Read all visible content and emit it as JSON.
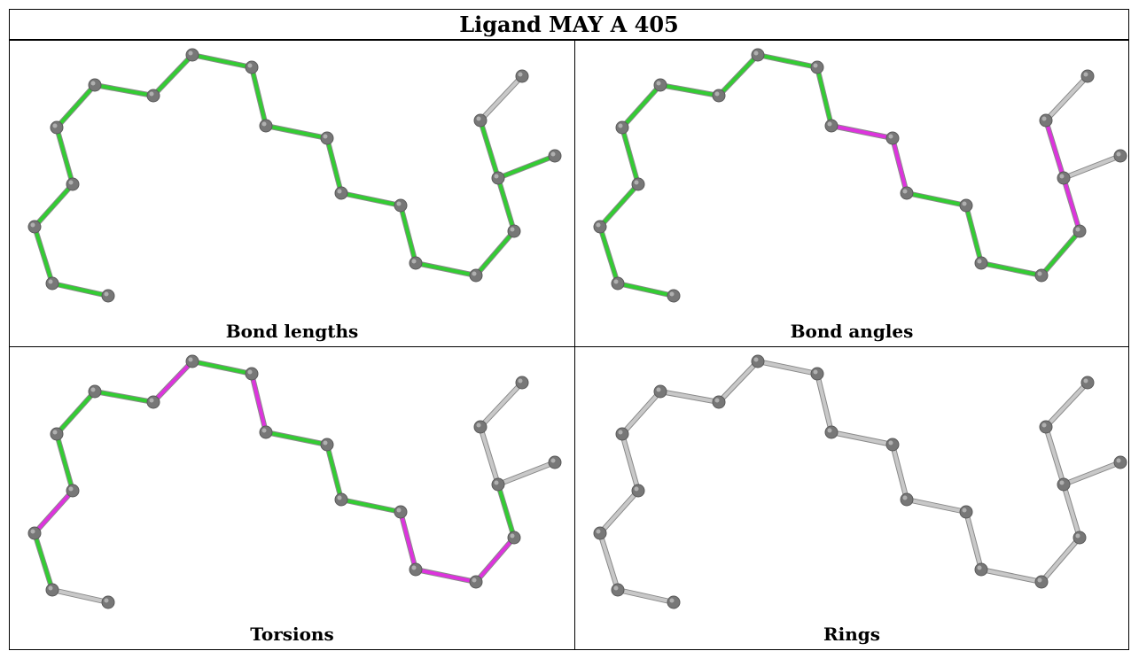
{
  "title": "Ligand MAY A 405",
  "colors": {
    "ok": "#33cc33",
    "outlier": "#dd33dd",
    "neutral": "#c8c8c8",
    "atom": "#777777"
  },
  "panels": [
    {
      "caption": "Bond lengths",
      "bond_colors": [
        "ok",
        "ok",
        "ok",
        "ok",
        "ok",
        "ok",
        "ok",
        "ok",
        "ok",
        "ok",
        "ok",
        "ok",
        "ok",
        "ok",
        "ok",
        "ok",
        "ok",
        "ok",
        "neutral",
        "neutral",
        "neutral",
        "ok"
      ]
    },
    {
      "caption": "Bond angles",
      "bond_colors": [
        "ok",
        "ok",
        "ok",
        "ok",
        "ok",
        "ok",
        "ok",
        "ok",
        "ok",
        "outlier",
        "outlier",
        "ok",
        "ok",
        "ok",
        "ok",
        "outlier",
        "outlier",
        "neutral",
        "neutral",
        "neutral",
        "neutral",
        "neutral"
      ]
    },
    {
      "caption": "Torsions",
      "bond_colors": [
        "neutral",
        "ok",
        "outlier",
        "ok",
        "ok",
        "ok",
        "outlier",
        "ok",
        "outlier",
        "ok",
        "ok",
        "ok",
        "outlier",
        "outlier",
        "outlier",
        "ok",
        "neutral",
        "neutral",
        "neutral",
        "neutral",
        "neutral",
        "neutral"
      ]
    },
    {
      "caption": "Rings",
      "bond_colors": [
        "neutral",
        "neutral",
        "neutral",
        "neutral",
        "neutral",
        "neutral",
        "neutral",
        "neutral",
        "neutral",
        "neutral",
        "neutral",
        "neutral",
        "neutral",
        "neutral",
        "neutral",
        "neutral",
        "neutral",
        "neutral",
        "neutral",
        "neutral",
        "neutral",
        "neutral"
      ]
    }
  ]
}
